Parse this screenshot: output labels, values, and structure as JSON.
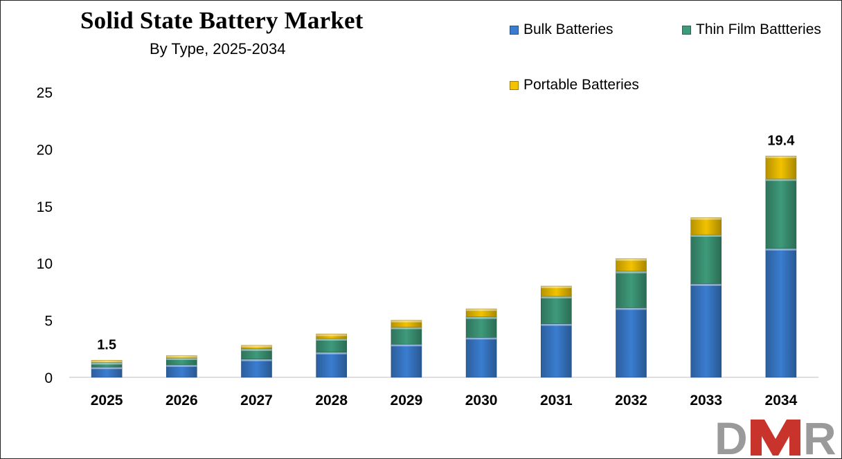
{
  "chart_data": {
    "type": "bar",
    "stacked": true,
    "title": "Solid State Battery Market",
    "subtitle": "By Type, 2025-2034",
    "xlabel": "",
    "ylabel": "",
    "ylim": [
      0,
      25
    ],
    "yticks": [
      "0",
      "5",
      "10",
      "15",
      "20",
      "25"
    ],
    "categories": [
      "2025",
      "2026",
      "2027",
      "2028",
      "2029",
      "2030",
      "2031",
      "2032",
      "2033",
      "2034"
    ],
    "series": [
      {
        "name": "Bulk Batteries",
        "color": "#3a7dd0",
        "values": [
          0.9,
          1.1,
          1.6,
          2.2,
          2.9,
          3.5,
          4.7,
          6.1,
          8.2,
          11.3
        ]
      },
      {
        "name": "Thin Film Battteries",
        "color": "#3e9a7a",
        "values": [
          0.4,
          0.6,
          0.9,
          1.2,
          1.5,
          1.8,
          2.4,
          3.2,
          4.3,
          6.1
        ]
      },
      {
        "name": "Portable Batteries",
        "color": "#f2c200",
        "values": [
          0.2,
          0.2,
          0.3,
          0.4,
          0.6,
          0.7,
          0.9,
          1.1,
          1.5,
          2.0
        ]
      }
    ],
    "annotations": [
      {
        "category": "2025",
        "text": "1.5"
      },
      {
        "category": "2034",
        "text": "19.4"
      }
    ],
    "legend_position": "top-right",
    "grid": false
  },
  "logo": {
    "text": "DMR"
  }
}
